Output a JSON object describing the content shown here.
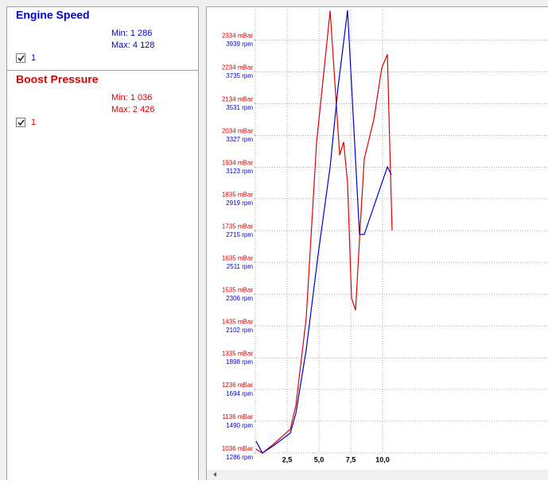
{
  "panels": [
    {
      "min_text": "Min: 1 286",
      "max_text": "Max: 4 128",
      "checkbox_label": "1"
    },
    {
      "min_text": "Min: 1 036",
      "max_text": "Max: 2 426",
      "checkbox_label": "1"
    }
  ],
  "chart_data": {
    "type": "line",
    "xlim": [
      0,
      23
    ],
    "xticks": [
      {
        "value": 2.5,
        "label": "2,5"
      },
      {
        "value": 5,
        "label": "5,0"
      },
      {
        "value": 7.5,
        "label": "7,5"
      },
      {
        "value": 10,
        "label": "10,0"
      }
    ],
    "ylim": [
      1036,
      2430
    ],
    "yticks": [
      {
        "value": 1036,
        "label": "1036 mBar"
      },
      {
        "value": 1136,
        "label": "1136 mBar"
      },
      {
        "value": 1236,
        "label": "1236 mBar"
      },
      {
        "value": 1335,
        "label": "1335 mBar"
      },
      {
        "value": 1435,
        "label": "1435 mBar"
      },
      {
        "value": 1535,
        "label": "1535 mBar"
      },
      {
        "value": 1635,
        "label": "1635 mBar"
      },
      {
        "value": 1735,
        "label": "1735 mBar"
      },
      {
        "value": 1835,
        "label": "1835 mBar"
      },
      {
        "value": 1934,
        "label": "1934 mBar"
      },
      {
        "value": 2034,
        "label": "2034 mBar"
      },
      {
        "value": 2134,
        "label": "2134 mBar"
      },
      {
        "value": 2234,
        "label": "2234 mBar"
      },
      {
        "value": 2334,
        "label": "2334 mBar"
      }
    ],
    "y2lim": [
      1286,
      4133
    ],
    "y2ticks": [
      {
        "value": 1286,
        "label": "1286 rpm"
      },
      {
        "value": 1490,
        "label": "1490 rpm"
      },
      {
        "value": 1694,
        "label": "1694 rpm"
      },
      {
        "value": 1898,
        "label": "1898 rpm"
      },
      {
        "value": 2102,
        "label": "2102 rpm"
      },
      {
        "value": 2306,
        "label": "2306 rpm"
      },
      {
        "value": 2511,
        "label": "2511 rpm"
      },
      {
        "value": 2715,
        "label": "2715 rpm"
      },
      {
        "value": 2919,
        "label": "2919 rpm"
      },
      {
        "value": 3123,
        "label": "3123 rpm"
      },
      {
        "value": 3327,
        "label": "3327 rpm"
      },
      {
        "value": 3531,
        "label": "3531 rpm"
      },
      {
        "value": 3735,
        "label": "3735 rpm"
      },
      {
        "value": 3939,
        "label": "3939 rpm"
      }
    ],
    "grid": true,
    "series": [
      {
        "name": "Engine Speed",
        "color": "#0000cc",
        "axis": "y2",
        "x": [
          0.06,
          0.56,
          1.5,
          2.75,
          3.19,
          4.0,
          4.94,
          5.88,
          6.5,
          7.25,
          8.19,
          8.56,
          10.38,
          10.69
        ],
        "values": [
          1363,
          1286,
          1337,
          1414,
          1541,
          1949,
          2562,
          3123,
          3633,
          4128,
          2689,
          2689,
          3123,
          3072
        ]
      },
      {
        "name": "Boost Pressure",
        "color": "#dd0000",
        "x": [
          0.06,
          0.56,
          1.5,
          2.75,
          3.19,
          4.0,
          4.81,
          5.88,
          6.63,
          6.94,
          7.25,
          7.56,
          7.88,
          8.19,
          8.56,
          9.31,
          9.94,
          10.38,
          10.56,
          10.75
        ],
        "values": [
          1048,
          1036,
          1066,
          1111,
          1186,
          1460,
          2010,
          2426,
          1972,
          2014,
          1885,
          1523,
          1485,
          1710,
          1960,
          2084,
          2247,
          2289,
          2010,
          1735
        ]
      }
    ]
  }
}
